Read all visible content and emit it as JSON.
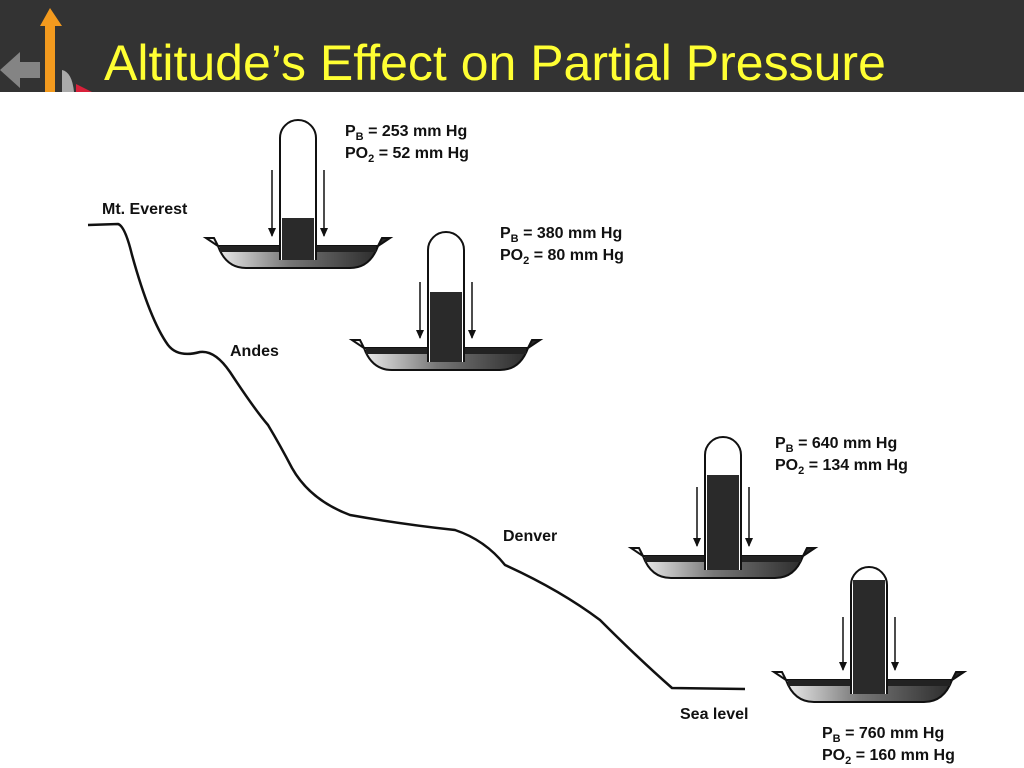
{
  "header": {
    "title": "Altitude’s Effect on Partial Pressure"
  },
  "locations": [
    "Mt. Everest",
    "Andes",
    "Denver",
    "Sea level"
  ],
  "barometers": [
    {
      "pb": {
        "symbol": "P",
        "subscript": "B",
        "text": " = 253 mm Hg"
      },
      "po2": {
        "symbol": "PO",
        "subscript": "2",
        "text": " = 52 mm Hg"
      }
    },
    {
      "pb": {
        "symbol": "P",
        "subscript": "B",
        "text": " = 380 mm Hg"
      },
      "po2": {
        "symbol": "PO",
        "subscript": "2",
        "text": " = 80 mm Hg"
      }
    },
    {
      "pb": {
        "symbol": "P",
        "subscript": "B",
        "text": " = 640 mm Hg"
      },
      "po2": {
        "symbol": "PO",
        "subscript": "2",
        "text": " = 134 mm Hg"
      }
    },
    {
      "pb": {
        "symbol": "P",
        "subscript": "B",
        "text": " = 760 mm Hg"
      },
      "po2": {
        "symbol": "PO",
        "subscript": "2",
        "text": " = 160 mm Hg"
      }
    }
  ]
}
